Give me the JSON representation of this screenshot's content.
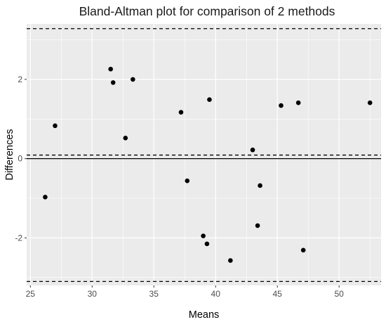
{
  "chart_data": {
    "type": "scatter",
    "title": "Bland-Altman plot for comparison of 2 methods",
    "xlabel": "Means",
    "ylabel": "Differences",
    "xlim": [
      24.7,
      53.4
    ],
    "ylim": [
      -3.2,
      3.4
    ],
    "x_ticks": [
      25,
      30,
      35,
      40,
      45,
      50
    ],
    "y_ticks": [
      -2,
      0,
      2
    ],
    "x_tick_labels": [
      "25",
      "30",
      "35",
      "40",
      "45",
      "50"
    ],
    "y_tick_labels": [
      "-2",
      "0",
      "2"
    ],
    "grid": true,
    "background_color": "#ebebeb",
    "grid_color": "#ffffff",
    "point_color": "#000000",
    "reference_lines": [
      {
        "kind": "zero-line",
        "y": 0,
        "style": "solid"
      },
      {
        "kind": "mean-difference",
        "y": 0.09,
        "style": "dashed"
      },
      {
        "kind": "upper-limit",
        "y": 3.28,
        "style": "dashed"
      },
      {
        "kind": "lower-limit",
        "y": -3.1,
        "style": "dashed"
      }
    ],
    "points": [
      {
        "x": 26.2,
        "y": -0.97
      },
      {
        "x": 27.0,
        "y": 0.83
      },
      {
        "x": 31.5,
        "y": 2.26
      },
      {
        "x": 31.7,
        "y": 1.92
      },
      {
        "x": 32.7,
        "y": 0.52
      },
      {
        "x": 33.3,
        "y": 2.0
      },
      {
        "x": 37.2,
        "y": 1.17
      },
      {
        "x": 37.7,
        "y": -0.56
      },
      {
        "x": 39.0,
        "y": -1.95
      },
      {
        "x": 39.3,
        "y": -2.15
      },
      {
        "x": 39.5,
        "y": 1.49
      },
      {
        "x": 41.2,
        "y": -2.57
      },
      {
        "x": 43.0,
        "y": 0.22
      },
      {
        "x": 43.4,
        "y": -1.69
      },
      {
        "x": 43.6,
        "y": -0.68
      },
      {
        "x": 45.3,
        "y": 1.34
      },
      {
        "x": 46.7,
        "y": 1.41
      },
      {
        "x": 47.1,
        "y": -2.31
      },
      {
        "x": 52.5,
        "y": 1.41
      }
    ]
  }
}
